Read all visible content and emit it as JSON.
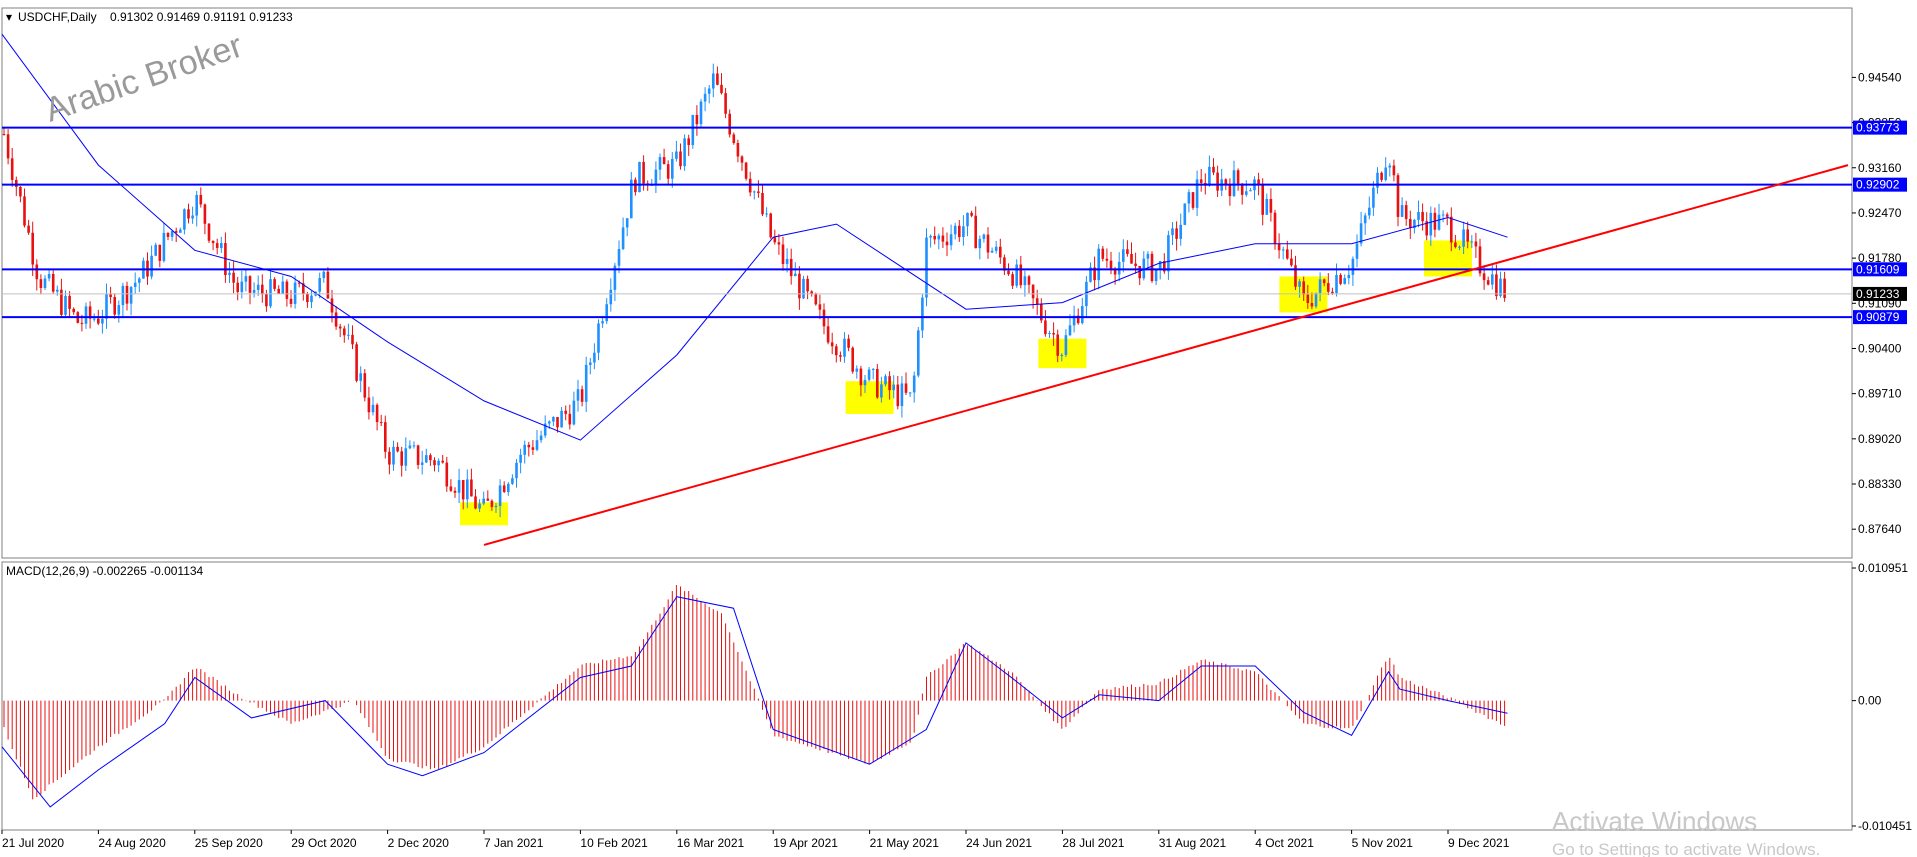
{
  "chart_data": [
    {
      "type": "candlestick",
      "title": "USDCHF,Daily",
      "ohlc_text": "0.91302 0.91469 0.91191 0.91233",
      "ylim": [
        0.872,
        0.956
      ],
      "y_ticks": [
        "0.94540",
        "0.93850",
        "0.93160",
        "0.92470",
        "0.91780",
        "0.91090",
        "0.90400",
        "0.89710",
        "0.89020",
        "0.88330",
        "0.87640"
      ],
      "x_tick_labels": [
        "21 Jul 2020",
        "24 Aug 2020",
        "25 Sep 2020",
        "29 Oct 2020",
        "2 Dec 2020",
        "7 Jan 2021",
        "10 Feb 2021",
        "16 Mar 2021",
        "19 Apr 2021",
        "21 May 2021",
        "24 Jun 2021",
        "28 Jul 2021",
        "31 Aug 2021",
        "4 Oct 2021",
        "5 Nov 2021",
        "9 Dec 2021"
      ],
      "up_color": "#1e90ff",
      "down_color": "#e81010",
      "horizontal_levels": [
        "0.93773",
        "0.92902",
        "0.91609",
        "0.90879"
      ],
      "current_price": "0.91233",
      "level_color": "#0000ff",
      "trendline_color": "#ff0000",
      "trendline_points": [
        [
          "7 Jan 2021",
          0.874
        ],
        [
          "end",
          0.932
        ]
      ],
      "price_path": [
        [
          "21 Jul 2020",
          0.938
        ],
        [
          "3 Aug 2020",
          0.915
        ],
        [
          "17 Aug 2020",
          0.908
        ],
        [
          "24 Aug 2020",
          0.909
        ],
        [
          "7 Sep 2020",
          0.915
        ],
        [
          "25 Sep 2020",
          0.927
        ],
        [
          "10 Oct 2020",
          0.913
        ],
        [
          "29 Oct 2020",
          0.912
        ],
        [
          "10 Nov 2020",
          0.914
        ],
        [
          "2 Dec 2020",
          0.888
        ],
        [
          "20 Dec 2020",
          0.887
        ],
        [
          "7 Jan 2021",
          0.879
        ],
        [
          "20 Jan 2021",
          0.888
        ],
        [
          "10 Feb 2021",
          0.896
        ],
        [
          "1 Mar 2021",
          0.93
        ],
        [
          "16 Mar 2021",
          0.932
        ],
        [
          "29 Mar 2021",
          0.945
        ],
        [
          "19 Apr 2021",
          0.92
        ],
        [
          "5 May 2021",
          0.908
        ],
        [
          "21 May 2021",
          0.899
        ],
        [
          "5 Jun 2021",
          0.896
        ],
        [
          "10 Jun 2021",
          0.92
        ],
        [
          "24 Jun 2021",
          0.923
        ],
        [
          "10 Jul 2021",
          0.916
        ],
        [
          "28 Jul 2021",
          0.904
        ],
        [
          "10 Aug 2021",
          0.918
        ],
        [
          "31 Aug 2021",
          0.916
        ],
        [
          "15 Sep 2021",
          0.93
        ],
        [
          "4 Oct 2021",
          0.929
        ],
        [
          "20 Oct 2021",
          0.911
        ],
        [
          "5 Nov 2021",
          0.917
        ],
        [
          "18 Nov 2021",
          0.935
        ],
        [
          "22 Nov 2021",
          0.924
        ],
        [
          "9 Dec 2021",
          0.923
        ],
        [
          "20 Dec 2021",
          0.917
        ],
        [
          "30 Dec 2021",
          0.9123
        ]
      ],
      "moving_average": [
        [
          "21 Jul 2020",
          0.952
        ],
        [
          "24 Aug 2020",
          0.932
        ],
        [
          "25 Sep 2020",
          0.919
        ],
        [
          "29 Oct 2020",
          0.915
        ],
        [
          "2 Dec 2020",
          0.905
        ],
        [
          "7 Jan 2021",
          0.896
        ],
        [
          "10 Feb 2021",
          0.89
        ],
        [
          "16 Mar 2021",
          0.903
        ],
        [
          "19 Apr 2021",
          0.921
        ],
        [
          "10 May 2021",
          0.923
        ],
        [
          "24 Jun 2021",
          0.91
        ],
        [
          "28 Jul 2021",
          0.911
        ],
        [
          "31 Aug 2021",
          0.917
        ],
        [
          "4 Oct 2021",
          0.92
        ],
        [
          "5 Nov 2021",
          0.92
        ],
        [
          "9 Dec 2021",
          0.924
        ],
        [
          "30 Dec 2021",
          0.921
        ]
      ],
      "highlights": [
        [
          "7 Jan 2021",
          0.877,
          0.8805
        ],
        [
          "21 May 2021",
          0.894,
          0.899
        ],
        [
          "28 Jul 2021",
          0.901,
          0.9055
        ],
        [
          "20 Oct 2021",
          0.9095,
          0.915
        ],
        [
          "9 Dec 2021",
          0.915,
          0.9205
        ]
      ],
      "highlight_color": "#ffff00"
    },
    {
      "type": "bar",
      "title": "MACD(12,26,9) -0.002265 -0.001134",
      "ylim": [
        -0.0112,
        0.012
      ],
      "y_ticks": [
        "0.010951",
        "0.00",
        "-0.010451"
      ],
      "histogram_color": "#e81010",
      "signal_color": "#0000ff",
      "histogram_path": [
        [
          "21 Jul 2020",
          -0.002
        ],
        [
          "1 Aug 2020",
          -0.0085
        ],
        [
          "24 Aug 2020",
          -0.004
        ],
        [
          "15 Sep 2020",
          0.0
        ],
        [
          "25 Sep 2020",
          0.003
        ],
        [
          "10 Oct 2020",
          0.0005
        ],
        [
          "29 Oct 2020",
          -0.002
        ],
        [
          "20 Nov 2020",
          0.0
        ],
        [
          "2 Dec 2020",
          -0.005
        ],
        [
          "20 Dec 2020",
          -0.006
        ],
        [
          "7 Jan 2021",
          -0.004
        ],
        [
          "10 Feb 2021",
          0.003
        ],
        [
          "1 Mar 2021",
          0.004
        ],
        [
          "16 Mar 2021",
          0.01
        ],
        [
          "1 Apr 2021",
          0.0075
        ],
        [
          "19 Apr 2021",
          -0.003
        ],
        [
          "21 May 2021",
          -0.0055
        ],
        [
          "5 Jun 2021",
          -0.0035
        ],
        [
          "10 Jun 2021",
          0.002
        ],
        [
          "24 Jun 2021",
          0.005
        ],
        [
          "10 Jul 2021",
          0.0025
        ],
        [
          "28 Jul 2021",
          -0.0025
        ],
        [
          "10 Aug 2021",
          0.001
        ],
        [
          "31 Aug 2021",
          0.0015
        ],
        [
          "15 Sep 2021",
          0.0035
        ],
        [
          "4 Oct 2021",
          0.0025
        ],
        [
          "20 Oct 2021",
          -0.002
        ],
        [
          "5 Nov 2021",
          -0.0025
        ],
        [
          "18 Nov 2021",
          0.004
        ],
        [
          "22 Nov 2021",
          0.002
        ],
        [
          "9 Dec 2021",
          0.0003
        ],
        [
          "30 Dec 2021",
          -0.0023
        ]
      ],
      "signal_path": [
        [
          "21 Jul 2020",
          -0.004
        ],
        [
          "7 Aug 2020",
          -0.0092
        ],
        [
          "24 Aug 2020",
          -0.006
        ],
        [
          "15 Sep 2020",
          -0.002
        ],
        [
          "25 Sep 2020",
          0.002
        ],
        [
          "15 Oct 2020",
          -0.0015
        ],
        [
          "10 Nov 2020",
          0.0
        ],
        [
          "2 Dec 2020",
          -0.0055
        ],
        [
          "15 Dec 2020",
          -0.0065
        ],
        [
          "7 Jan 2021",
          -0.0045
        ],
        [
          "10 Feb 2021",
          0.002
        ],
        [
          "28 Feb 2021",
          0.003
        ],
        [
          "16 Mar 2021",
          0.009
        ],
        [
          "5 Apr 2021",
          0.008
        ],
        [
          "19 Apr 2021",
          -0.0025
        ],
        [
          "21 May 2021",
          -0.0055
        ],
        [
          "10 Jun 2021",
          -0.0025
        ],
        [
          "24 Jun 2021",
          0.005
        ],
        [
          "10 Jul 2021",
          0.002
        ],
        [
          "28 Jul 2021",
          -0.0015
        ],
        [
          "10 Aug 2021",
          0.0005
        ],
        [
          "31 Aug 2021",
          0.0
        ],
        [
          "15 Sep 2021",
          0.003
        ],
        [
          "4 Oct 2021",
          0.003
        ],
        [
          "20 Oct 2021",
          -0.001
        ],
        [
          "5 Nov 2021",
          -0.003
        ],
        [
          "18 Nov 2021",
          0.0025
        ],
        [
          "22 Nov 2021",
          0.001
        ],
        [
          "9 Dec 2021",
          0.0
        ],
        [
          "30 Dec 2021",
          -0.0011
        ]
      ]
    }
  ],
  "watermark": "Arabic Broker",
  "overlay": {
    "title": "Activate Windows",
    "subtitle": "Go to Settings to activate Windows."
  }
}
